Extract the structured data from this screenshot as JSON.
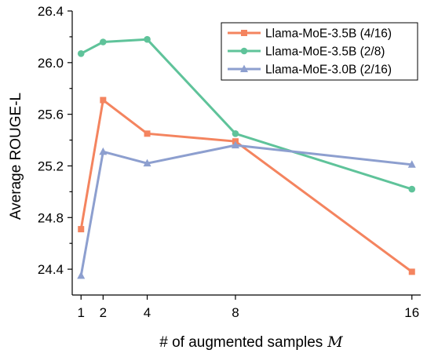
{
  "chart_data": {
    "type": "line",
    "title": "",
    "xlabel": "# of augmented samples",
    "xlabel_var": "M",
    "ylabel": "Average ROUGE-L",
    "x": [
      1,
      2,
      4,
      8,
      16
    ],
    "x_ticks": [
      "1",
      "2",
      "4",
      "8",
      "16"
    ],
    "xlim": [
      0.6,
      16.4
    ],
    "ylim": [
      24.2,
      26.4
    ],
    "y_major_ticks": [
      {
        "value": 24.4,
        "label": "24.4"
      },
      {
        "value": 24.8,
        "label": "24.8"
      },
      {
        "value": 25.2,
        "label": "25.2"
      },
      {
        "value": 25.6,
        "label": "25.6"
      },
      {
        "value": 26.0,
        "label": "26.0"
      },
      {
        "value": 26.4,
        "label": "26.4"
      }
    ],
    "y_minor_ticks": [
      24.6,
      25.0,
      25.4,
      25.8,
      26.2
    ],
    "grid": false,
    "legend_position": "top-right",
    "series": [
      {
        "name": "Llama-MoE-3.5B (4/16)",
        "color": "#f4845f",
        "marker": "square",
        "values": [
          24.71,
          25.71,
          25.45,
          25.39,
          24.38
        ]
      },
      {
        "name": "Llama-MoE-3.5B (2/8)",
        "color": "#5fc39a",
        "marker": "circle",
        "values": [
          26.07,
          26.16,
          26.18,
          25.45,
          25.02
        ]
      },
      {
        "name": "Llama-MoE-3.0B (2/16)",
        "color": "#8d9fcf",
        "marker": "triangle",
        "values": [
          24.35,
          25.31,
          25.22,
          25.36,
          25.21
        ]
      }
    ]
  }
}
